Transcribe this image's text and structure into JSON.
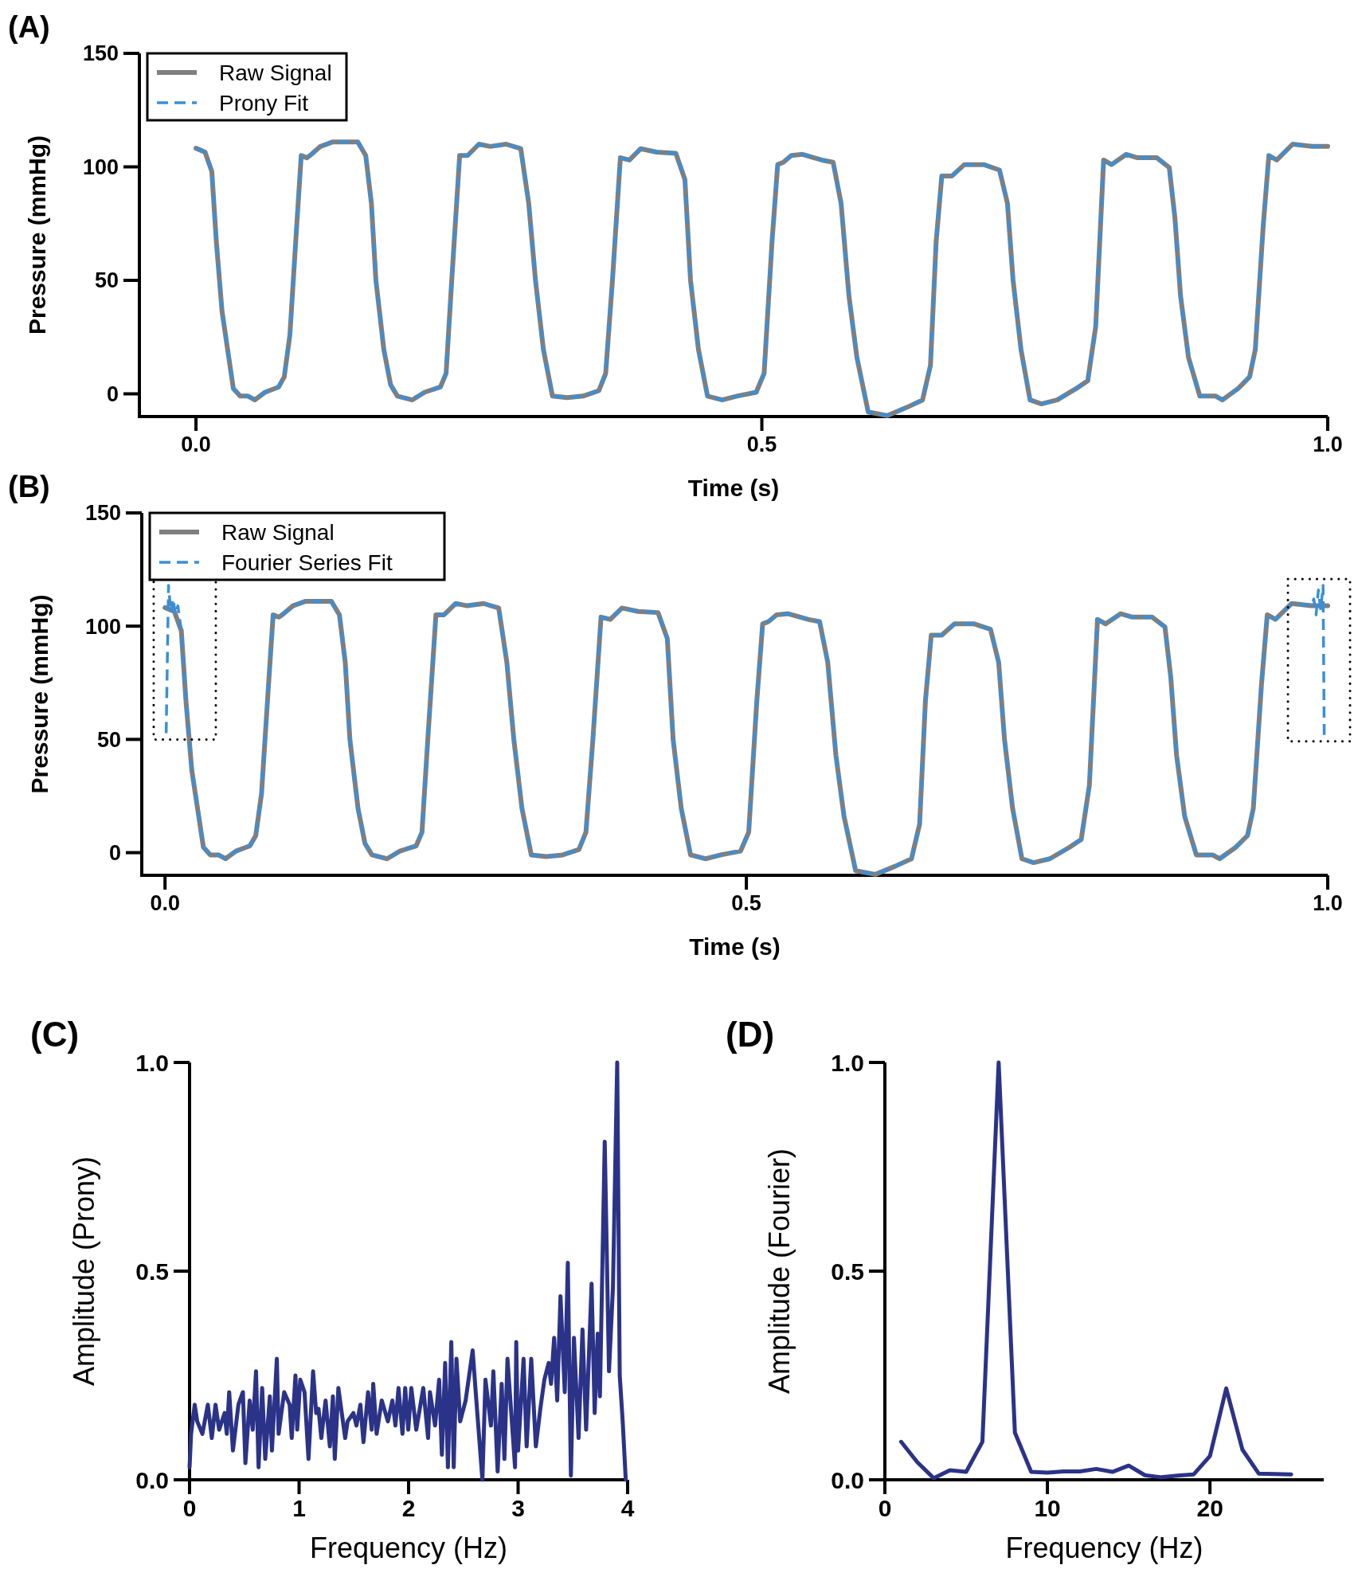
{
  "chart_data": [
    {
      "type": "line",
      "title": "(A)",
      "xlabel": "Time (s)",
      "ylabel": "Pressure (mmHg)",
      "xlim": [
        -0.05,
        1.0
      ],
      "ylim": [
        -10,
        150
      ],
      "xticks": [
        {
          "value": 0,
          "label": "0.0"
        },
        {
          "value": 0.5,
          "label": "0.5"
        },
        {
          "value": 1,
          "label": "1.0"
        }
      ],
      "yticks": [
        0,
        50,
        100,
        150
      ],
      "legend": "top left",
      "x": [
        0,
        0.008,
        0.014,
        0.018,
        0.023,
        0.029,
        0.033,
        0.039,
        0.046,
        0.052,
        0.061,
        0.073,
        0.078,
        0.083,
        0.089,
        0.093,
        0.098,
        0.102,
        0.11,
        0.121,
        0.134,
        0.143,
        0.15,
        0.155,
        0.159,
        0.166,
        0.172,
        0.178,
        0.191,
        0.202,
        0.216,
        0.221,
        0.226,
        0.233,
        0.24,
        0.25,
        0.26,
        0.274,
        0.287,
        0.294,
        0.3,
        0.307,
        0.315,
        0.328,
        0.342,
        0.356,
        0.362,
        0.368,
        0.375,
        0.383,
        0.393,
        0.407,
        0.424,
        0.432,
        0.437,
        0.444,
        0.452,
        0.465,
        0.478,
        0.495,
        0.502,
        0.509,
        0.514,
        0.519,
        0.526,
        0.536,
        0.553,
        0.563,
        0.57,
        0.577,
        0.584,
        0.594,
        0.611,
        0.628,
        0.642,
        0.649,
        0.654,
        0.659,
        0.668,
        0.679,
        0.696,
        0.71,
        0.717,
        0.722,
        0.729,
        0.737,
        0.747,
        0.761,
        0.778,
        0.788,
        0.795,
        0.802,
        0.809,
        0.822,
        0.832,
        0.849,
        0.86,
        0.865,
        0.87,
        0.877,
        0.887,
        0.901,
        0.907,
        0.921,
        0.931,
        0.936,
        0.943,
        0.948,
        0.955,
        0.969,
        0.986,
        1.0
      ],
      "series": [
        {
          "name": "Raw Signal",
          "color": "#7f7f7f",
          "line_style": "solid",
          "values": [
            108.2,
            106.5,
            98,
            67,
            36.5,
            16,
            2.4,
            -1,
            -1,
            -2.7,
            0.7,
            3,
            7.5,
            26,
            74,
            105,
            104,
            105.5,
            109,
            111,
            111,
            111,
            105,
            84,
            50,
            19.5,
            4,
            -1,
            -2.7,
            0.7,
            3,
            9,
            50,
            105,
            105,
            110,
            109,
            110,
            108,
            84,
            50,
            19.5,
            -1,
            -1.7,
            -1,
            1.4,
            9,
            50,
            104,
            103,
            108,
            106.5,
            106,
            94.5,
            50,
            19.5,
            -1,
            -2.7,
            -1,
            0.7,
            9,
            67,
            101,
            102,
            105,
            105.5,
            103,
            102,
            84,
            43,
            16,
            -8,
            -9.6,
            -6,
            -2.7,
            12.6,
            67,
            96,
            96,
            101,
            101,
            98.6,
            84,
            50,
            19.5,
            -2.7,
            -4.4,
            -2.7,
            2.4,
            5.8,
            29.7,
            103,
            101,
            105.5,
            104,
            104,
            99.7,
            77.5,
            43,
            16,
            -1,
            -1,
            -2.7,
            2.4,
            7.5,
            19.5,
            74,
            105,
            103,
            110,
            109,
            109
          ]
        },
        {
          "name": "Prony Fit",
          "color": "#3a8fd8",
          "line_style": "dashed",
          "values": [
            108.2,
            106.5,
            98,
            67,
            36.5,
            16,
            2.4,
            -1,
            -1,
            -2.7,
            0.7,
            3,
            7.5,
            26,
            74,
            105,
            104,
            105.5,
            109,
            111,
            111,
            111,
            105,
            84,
            50,
            19.5,
            4,
            -1,
            -2.7,
            0.7,
            3,
            9,
            50,
            105,
            105,
            110,
            109,
            110,
            108,
            84,
            50,
            19.5,
            -1,
            -1.7,
            -1,
            1.4,
            9,
            50,
            104,
            103,
            108,
            106.5,
            106,
            94.5,
            50,
            19.5,
            -1,
            -2.7,
            -1,
            0.7,
            9,
            67,
            101,
            102,
            105,
            105.5,
            103,
            102,
            84,
            43,
            16,
            -8,
            -9.6,
            -6,
            -2.7,
            12.6,
            67,
            96,
            96,
            101,
            101,
            98.6,
            84,
            50,
            19.5,
            -2.7,
            -4.4,
            -2.7,
            2.4,
            5.8,
            29.7,
            103,
            101,
            105.5,
            104,
            104,
            99.7,
            77.5,
            43,
            16,
            -1,
            -1,
            -2.7,
            2.4,
            7.5,
            19.5,
            74,
            105,
            103,
            110,
            109,
            109
          ]
        }
      ]
    },
    {
      "type": "line",
      "title": "(B)",
      "xlabel": "Time (s)",
      "ylabel": "Pressure (mmHg)",
      "xlim": [
        -0.02,
        1.0
      ],
      "ylim": [
        -10,
        150
      ],
      "xticks": [
        {
          "value": 0,
          "label": "0.0"
        },
        {
          "value": 0.5,
          "label": "0.5"
        },
        {
          "value": 1,
          "label": "1.0"
        }
      ],
      "yticks": [
        0,
        50,
        100,
        150
      ],
      "legend": "top left",
      "x": [
        0,
        0.008,
        0.014,
        0.018,
        0.023,
        0.029,
        0.033,
        0.039,
        0.046,
        0.052,
        0.061,
        0.073,
        0.078,
        0.083,
        0.089,
        0.093,
        0.098,
        0.102,
        0.11,
        0.121,
        0.134,
        0.143,
        0.15,
        0.155,
        0.159,
        0.166,
        0.172,
        0.178,
        0.191,
        0.202,
        0.216,
        0.221,
        0.226,
        0.233,
        0.24,
        0.25,
        0.26,
        0.274,
        0.287,
        0.294,
        0.3,
        0.307,
        0.315,
        0.328,
        0.342,
        0.356,
        0.362,
        0.368,
        0.375,
        0.383,
        0.393,
        0.407,
        0.424,
        0.432,
        0.437,
        0.444,
        0.452,
        0.465,
        0.478,
        0.495,
        0.502,
        0.509,
        0.514,
        0.519,
        0.526,
        0.536,
        0.553,
        0.563,
        0.57,
        0.577,
        0.584,
        0.594,
        0.611,
        0.628,
        0.642,
        0.649,
        0.654,
        0.659,
        0.668,
        0.679,
        0.696,
        0.71,
        0.717,
        0.722,
        0.729,
        0.737,
        0.747,
        0.761,
        0.778,
        0.788,
        0.795,
        0.802,
        0.809,
        0.822,
        0.832,
        0.849,
        0.86,
        0.865,
        0.87,
        0.877,
        0.887,
        0.901,
        0.907,
        0.921,
        0.931,
        0.936,
        0.943,
        0.948,
        0.955,
        0.969,
        0.986,
        1.0
      ],
      "series": [
        {
          "name": "Raw Signal",
          "color": "#7f7f7f",
          "line_style": "solid",
          "values": [
            108.2,
            106.5,
            98,
            67,
            36.5,
            16,
            2.4,
            -1,
            -1,
            -2.7,
            0.7,
            3,
            7.5,
            26,
            74,
            105,
            104,
            105.5,
            109,
            111,
            111,
            111,
            105,
            84,
            50,
            19.5,
            4,
            -1,
            -2.7,
            0.7,
            3,
            9,
            50,
            105,
            105,
            110,
            109,
            110,
            108,
            84,
            50,
            19.5,
            -1,
            -1.7,
            -1,
            1.4,
            9,
            50,
            104,
            103,
            108,
            106.5,
            106,
            94.5,
            50,
            19.5,
            -1,
            -2.7,
            -1,
            0.7,
            9,
            67,
            101,
            102,
            105,
            105.5,
            103,
            102,
            84,
            43,
            16,
            -8,
            -9.6,
            -6,
            -2.7,
            12.6,
            67,
            96,
            96,
            101,
            101,
            98.6,
            84,
            50,
            19.5,
            -2.7,
            -4.4,
            -2.7,
            2.4,
            5.8,
            29.7,
            103,
            101,
            105.5,
            104,
            104,
            99.7,
            77.5,
            43,
            16,
            -1,
            -1,
            -2.7,
            2.4,
            7.5,
            19.5,
            74,
            105,
            103,
            110,
            109,
            109
          ]
        },
        {
          "name": "Fourier Series Fit",
          "color": "#3a8fd8",
          "line_style": "dashed",
          "x": [
            0.001,
            0.003,
            0.005,
            0.007,
            0.009,
            0.011,
            0.014,
            0.018,
            0.023,
            0.029,
            0.033,
            0.039,
            0.046,
            0.052,
            0.061,
            0.073,
            0.078,
            0.083,
            0.089,
            0.093,
            0.098,
            0.102,
            0.11,
            0.121,
            0.134,
            0.143,
            0.15,
            0.155,
            0.159,
            0.166,
            0.172,
            0.178,
            0.191,
            0.202,
            0.216,
            0.221,
            0.226,
            0.233,
            0.24,
            0.25,
            0.26,
            0.274,
            0.287,
            0.294,
            0.3,
            0.307,
            0.315,
            0.328,
            0.342,
            0.356,
            0.362,
            0.368,
            0.375,
            0.383,
            0.393,
            0.407,
            0.424,
            0.432,
            0.437,
            0.444,
            0.452,
            0.465,
            0.478,
            0.495,
            0.502,
            0.509,
            0.514,
            0.519,
            0.526,
            0.536,
            0.553,
            0.563,
            0.57,
            0.577,
            0.584,
            0.594,
            0.611,
            0.628,
            0.642,
            0.649,
            0.654,
            0.659,
            0.668,
            0.679,
            0.696,
            0.71,
            0.717,
            0.722,
            0.729,
            0.737,
            0.747,
            0.761,
            0.778,
            0.788,
            0.795,
            0.802,
            0.809,
            0.822,
            0.832,
            0.849,
            0.86,
            0.865,
            0.87,
            0.877,
            0.887,
            0.901,
            0.907,
            0.921,
            0.931,
            0.936,
            0.943,
            0.948,
            0.955,
            0.969,
            0.986,
            0.988,
            0.99,
            0.992,
            0.994,
            0.996,
            0.997
          ],
          "values": [
            52.8,
            118,
            106,
            112,
            105,
            109,
            98,
            67,
            36.5,
            16,
            2.4,
            -1,
            -1,
            -2.7,
            0.7,
            3,
            7.5,
            26,
            74,
            105,
            104,
            105.5,
            109,
            111,
            111,
            111,
            105,
            84,
            50,
            19.5,
            4,
            -1,
            -2.7,
            0.7,
            3,
            9,
            50,
            105,
            105,
            110,
            109,
            110,
            108,
            84,
            50,
            19.5,
            -1,
            -1.7,
            -1,
            1.4,
            9,
            50,
            104,
            103,
            108,
            106.5,
            106,
            94.5,
            50,
            19.5,
            -1,
            -2.7,
            -1,
            0.7,
            9,
            67,
            101,
            102,
            105,
            105.5,
            103,
            102,
            84,
            43,
            16,
            -8,
            -9.6,
            -6,
            -2.7,
            12.6,
            67,
            96,
            96,
            101,
            101,
            98.6,
            84,
            50,
            19.5,
            -2.7,
            -4.4,
            -2.7,
            2.4,
            5.8,
            29.7,
            103,
            101,
            105.5,
            104,
            104,
            99.7,
            77.5,
            43,
            16,
            -1,
            -1,
            -2.7,
            2.4,
            7.5,
            19.5,
            74,
            105,
            103,
            110,
            109,
            112,
            105,
            116,
            107,
            118,
            52
          ]
        }
      ]
    },
    {
      "type": "line",
      "title": "(C)",
      "xlabel": "Frequency (Hz)",
      "ylabel": "Amplitude (Prony)",
      "xlim": [
        0,
        4
      ],
      "ylim": [
        0,
        1
      ],
      "xticks": [
        0,
        1,
        2,
        3,
        4
      ],
      "yticks": [
        {
          "value": 0,
          "label": "0.0"
        },
        {
          "value": 0.5,
          "label": "0.5"
        },
        {
          "value": 1,
          "label": "1.0"
        }
      ],
      "series": [
        {
          "color": "#2b3388",
          "line_style": "solid",
          "x": [
            0,
            0.014,
            0.047,
            0.07,
            0.117,
            0.167,
            0.203,
            0.237,
            0.27,
            0.32,
            0.34,
            0.362,
            0.396,
            0.446,
            0.487,
            0.51,
            0.549,
            0.577,
            0.607,
            0.63,
            0.663,
            0.691,
            0.733,
            0.752,
            0.797,
            0.813,
            0.864,
            0.914,
            0.933,
            0.967,
            0.983,
            1.011,
            1.05,
            1.086,
            1.128,
            1.156,
            1.178,
            1.203,
            1.242,
            1.281,
            1.309,
            1.326,
            1.359,
            1.421,
            1.443,
            1.496,
            1.524,
            1.56,
            1.588,
            1.63,
            1.663,
            1.677,
            1.708,
            1.755,
            1.811,
            1.852,
            1.88,
            1.908,
            1.944,
            1.969,
            1.997,
            2.025,
            2.07,
            2.134,
            2.178,
            2.195,
            2.242,
            2.279,
            2.304,
            2.334,
            2.359,
            2.39,
            2.412,
            2.437,
            2.471,
            2.521,
            2.585,
            2.613,
            2.674,
            2.702,
            2.752,
            2.774,
            2.813,
            2.85,
            2.875,
            2.903,
            2.972,
            2.983,
            3.0,
            3.05,
            3.078,
            3.12,
            3.162,
            3.203,
            3.24,
            3.279,
            3.301,
            3.329,
            3.357,
            3.387,
            3.426,
            3.454,
            3.482,
            3.51,
            3.552,
            3.588,
            3.621,
            3.671,
            3.699,
            3.727,
            3.747,
            3.791,
            3.83,
            3.866,
            3.905,
            3.928,
            3.955,
            3.983
          ],
          "values": [
            0.03,
            0.11,
            0.18,
            0.14,
            0.11,
            0.18,
            0.1,
            0.18,
            0.12,
            0.16,
            0.11,
            0.21,
            0.07,
            0.18,
            0.21,
            0.04,
            0.19,
            0.12,
            0.26,
            0.03,
            0.22,
            0.05,
            0.2,
            0.07,
            0.29,
            0.11,
            0.21,
            0.18,
            0.1,
            0.25,
            0.12,
            0.24,
            0.21,
            0.05,
            0.26,
            0.16,
            0.17,
            0.1,
            0.19,
            0.08,
            0.2,
            0.05,
            0.22,
            0.1,
            0.14,
            0.16,
            0.13,
            0.18,
            0.09,
            0.21,
            0.12,
            0.23,
            0.11,
            0.19,
            0.14,
            0.19,
            0.13,
            0.22,
            0.11,
            0.22,
            0.12,
            0.22,
            0.12,
            0.22,
            0.1,
            0.21,
            0.13,
            0.24,
            0.06,
            0.28,
            0.03,
            0.33,
            0.03,
            0.29,
            0.14,
            0.19,
            0.31,
            0.21,
            0.0,
            0.24,
            0.13,
            0.26,
            0.02,
            0.23,
            0.05,
            0.29,
            0.03,
            0.33,
            0.07,
            0.29,
            0.08,
            0.29,
            0.08,
            0.17,
            0.24,
            0.28,
            0.23,
            0.34,
            0.19,
            0.44,
            0.21,
            0.52,
            0.01,
            0.34,
            0.1,
            0.36,
            0.12,
            0.47,
            0.16,
            0.35,
            0.2,
            0.81,
            0.26,
            0.46,
            1.0,
            0.25,
            0.14,
            0.0
          ]
        }
      ]
    },
    {
      "type": "line",
      "title": "(D)",
      "xlabel": "Frequency (Hz)",
      "ylabel": "Amplitude (Fourier)",
      "xlim": [
        0,
        27
      ],
      "ylim": [
        0,
        1
      ],
      "xticks": [
        0,
        10,
        20
      ],
      "yticks": [
        {
          "value": 0,
          "label": "0.0"
        },
        {
          "value": 0.5,
          "label": "0.5"
        },
        {
          "value": 1,
          "label": "1.0"
        }
      ],
      "x": [
        1,
        2,
        3,
        4,
        5,
        6,
        7,
        8,
        9,
        10,
        11,
        12,
        13,
        14,
        15,
        16,
        17,
        18,
        19,
        20,
        21,
        22,
        23,
        24,
        25
      ],
      "series": [
        {
          "color": "#2b3388",
          "line_style": "solid",
          "values": [
            0.091,
            0.042,
            0.004,
            0.023,
            0.019,
            0.091,
            1.0,
            0.113,
            0.019,
            0.017,
            0.02,
            0.02,
            0.026,
            0.019,
            0.034,
            0.011,
            0.006,
            0.01,
            0.013,
            0.057,
            0.219,
            0.072,
            0.015,
            0.014,
            0.013
          ]
        }
      ]
    }
  ]
}
